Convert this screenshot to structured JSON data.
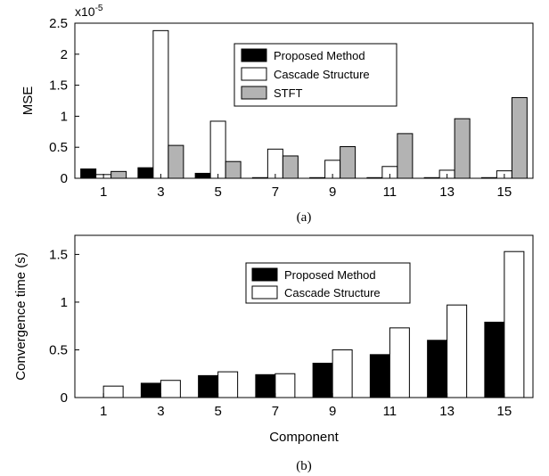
{
  "chart_data": [
    {
      "type": "bar",
      "caption": "(a)",
      "categories": [
        "1",
        "3",
        "5",
        "7",
        "9",
        "11",
        "13",
        "15"
      ],
      "ylabel": "MSE",
      "xlabel": "",
      "scale_note": "x10",
      "scale_exp": "-5",
      "ylim": [
        0,
        2.5
      ],
      "yticks": [
        "0",
        "0.5",
        "1",
        "1.5",
        "2",
        "2.5"
      ],
      "grid": false,
      "legend_position": "top-right",
      "series": [
        {
          "name": "Proposed Method",
          "color": "#000000",
          "values": [
            0.15,
            0.17,
            0.08,
            0.01,
            0.01,
            0.01,
            0.01,
            0.01
          ]
        },
        {
          "name": "Cascade Structure",
          "color": "#ffffff",
          "values": [
            0.06,
            2.38,
            0.92,
            0.47,
            0.29,
            0.19,
            0.13,
            0.12
          ]
        },
        {
          "name": "STFT",
          "color": "#b3b3b3",
          "values": [
            0.11,
            0.53,
            0.27,
            0.36,
            0.51,
            0.72,
            0.96,
            1.3
          ]
        }
      ]
    },
    {
      "type": "bar",
      "caption": "(b)",
      "categories": [
        "1",
        "3",
        "5",
        "7",
        "9",
        "11",
        "13",
        "15"
      ],
      "ylabel": "Convergence time (s)",
      "xlabel": "Component",
      "ylim": [
        0,
        1.7
      ],
      "yticks": [
        "0",
        "0.5",
        "1",
        "1.5"
      ],
      "grid": false,
      "legend_position": "top-center",
      "series": [
        {
          "name": "Proposed Method",
          "color": "#000000",
          "values": [
            0.0,
            0.15,
            0.23,
            0.24,
            0.36,
            0.45,
            0.6,
            0.79
          ]
        },
        {
          "name": "Cascade Structure",
          "color": "#ffffff",
          "values": [
            0.12,
            0.18,
            0.27,
            0.25,
            0.5,
            0.73,
            0.97,
            1.53
          ]
        }
      ]
    }
  ]
}
